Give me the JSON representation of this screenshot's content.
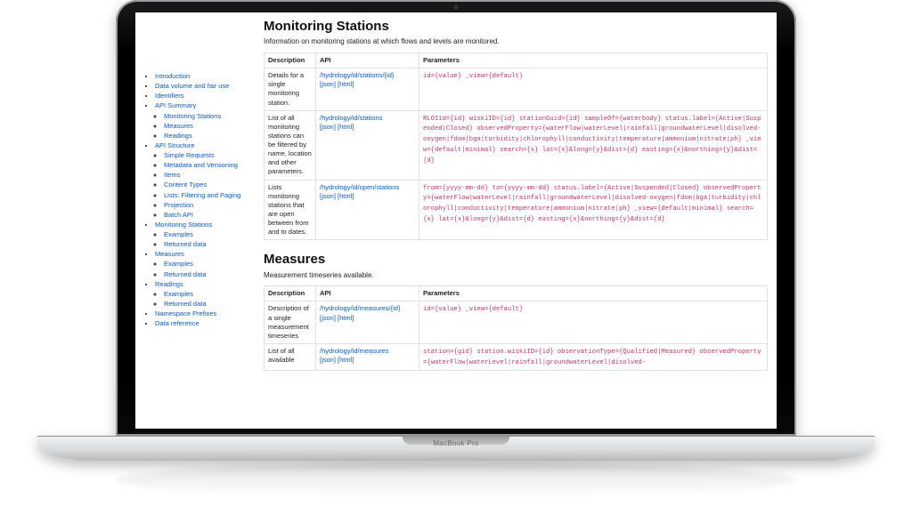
{
  "device_label": "MacBook Pro",
  "sidebar": {
    "items": [
      {
        "label": "Introduction",
        "name": "nav-introduction"
      },
      {
        "label": "Data volume and fair use",
        "name": "nav-data-volume"
      },
      {
        "label": "Identifiers",
        "name": "nav-identifiers"
      },
      {
        "label": "API Summary",
        "name": "nav-api-summary",
        "children": [
          {
            "label": "Monitoring Stations",
            "name": "nav-sum-monitoring-stations"
          },
          {
            "label": "Measures",
            "name": "nav-sum-measures"
          },
          {
            "label": "Readings",
            "name": "nav-sum-readings"
          }
        ]
      },
      {
        "label": "API Structure",
        "name": "nav-api-structure",
        "children": [
          {
            "label": "Simple Requests",
            "name": "nav-simple-requests"
          },
          {
            "label": "Metadata and Versioning",
            "name": "nav-metadata-versioning"
          },
          {
            "label": "Items",
            "name": "nav-items"
          },
          {
            "label": "Content Types",
            "name": "nav-content-types"
          },
          {
            "label": "Lists: Filtering and Paging",
            "name": "nav-lists-filtering"
          },
          {
            "label": "Projection",
            "name": "nav-projection"
          },
          {
            "label": "Batch API",
            "name": "nav-batch-api"
          }
        ]
      },
      {
        "label": "Monitoring Stations",
        "name": "nav-monitoring-stations",
        "children": [
          {
            "label": "Examples",
            "name": "nav-ms-examples"
          },
          {
            "label": "Returned data",
            "name": "nav-ms-returned"
          }
        ]
      },
      {
        "label": "Measures",
        "name": "nav-measures",
        "children": [
          {
            "label": "Examples",
            "name": "nav-m-examples"
          },
          {
            "label": "Returned data",
            "name": "nav-m-returned"
          }
        ]
      },
      {
        "label": "Readings",
        "name": "nav-readings",
        "children": [
          {
            "label": "Examples",
            "name": "nav-r-examples"
          },
          {
            "label": "Returned data",
            "name": "nav-r-returned"
          }
        ]
      },
      {
        "label": "Namespace Prefixes",
        "name": "nav-namespace-prefixes"
      },
      {
        "label": "Data reference",
        "name": "nav-data-reference"
      }
    ]
  },
  "columns": {
    "desc": "Description",
    "api": "API",
    "params": "Parameters"
  },
  "fmt": {
    "json": "[json]",
    "html": "[html]"
  },
  "sections": {
    "monitoring": {
      "title": "Monitoring Stations",
      "subtitle": "Information on monitoring stations at which flows and levels are monitored.",
      "rows": [
        {
          "desc": "Details for a single monitoring station.",
          "api": "/hydrology/id/stations/{id}",
          "params": "id={value}  _view={default}"
        },
        {
          "desc": "List of all monitoring stations can be filtered by name, location and other parameters.",
          "api": "/hydrology/id/stations",
          "params": "RLOIid={id}  wiskiID={id}  stationGuid={id}  sampleOf={waterbody}  status.label={Active|Suspended|Closed}  observedProperty={waterFlow|waterLevel|rainfall|groundwaterLevel|disolved-oxygen|fdom|bga|turbidity|chlorophyll|conductivity|temperature|ammonium|nitrate|ph}  _view={default|minimal}  search={x}  lat={x}&long={y}&dist={d}  easting={x}&northing={y}&dist={d}"
        },
        {
          "desc": "Lists monitoring stations that are open between from and to dates.",
          "api": "/hydrology/id/open/stations",
          "params": "from={yyyy-mm-dd}  to={yyyy-mm-dd}  status.label={Active|Suspended|Closed}  observedProperty={waterFlow|waterLevel|rainfall|groundwaterLevel|disolved-oxygen|fdom|bga|turbidity|chlorophyll|conductivity|temperature|ammonium|nitrate|ph}  _view={default|minimal}  search={x}  lat={x}&long={y}&dist={d}  easting={x}&northing={y}&dist={d}"
        }
      ]
    },
    "measures": {
      "title": "Measures",
      "subtitle": "Measurement timeseries available.",
      "rows": [
        {
          "desc": "Description of a single measurement timeseries",
          "api": "/hydrology/id/measures/{id}",
          "params": "id={value}  _view={default}"
        },
        {
          "desc": "List of all available",
          "api": "/hydrology/id/measures",
          "params": "station={gid}  station.wiskiID={id}  observationType={Qualified|Measured}  observedProperty={waterFlow|waterLevel|rainfall|groundwaterLevel|disolved-"
        }
      ]
    }
  },
  "colors": {
    "link": "#0a58ca",
    "code": "#c83264",
    "border": "#e0e0e0",
    "text": "#222222",
    "background": "#ffffff"
  }
}
